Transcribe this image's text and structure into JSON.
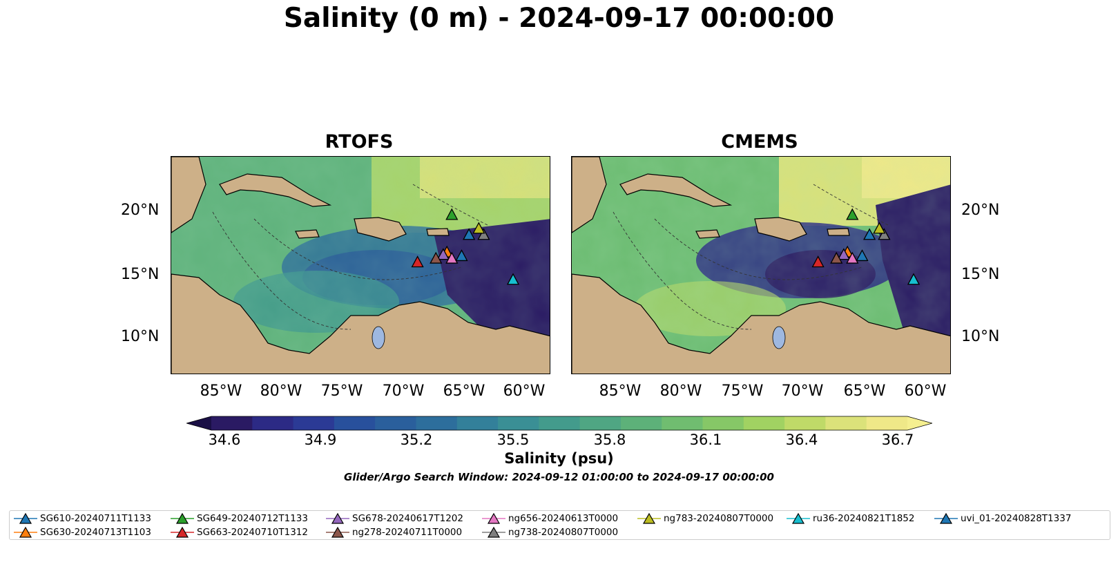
{
  "title": "Salinity (0 m) - 2024-09-17 00:00:00",
  "panels": [
    {
      "title": "RTOFS"
    },
    {
      "title": "CMEMS"
    }
  ],
  "latitude_labels": [
    "20°N",
    "15°N",
    "10°N"
  ],
  "longitude_labels": [
    "85°W",
    "80°W",
    "75°W",
    "70°W",
    "65°W",
    "60°W"
  ],
  "colorbar": {
    "ticks": [
      "34.6",
      "34.9",
      "35.2",
      "35.5",
      "35.8",
      "36.1",
      "36.4",
      "36.7"
    ],
    "label": "Salinity (psu)",
    "colors": [
      "#2a1a63",
      "#2c2a85",
      "#2b3a95",
      "#28509c",
      "#2a5f9c",
      "#2d6e9c",
      "#33809a",
      "#3a8f95",
      "#439b8c",
      "#4fa683",
      "#5db179",
      "#70bd70",
      "#86c767",
      "#a1d262",
      "#bfda68",
      "#dbe27a",
      "#efe888"
    ]
  },
  "search_window": "Glider/Argo Search Window: 2024-09-12 01:00:00 to 2024-09-17 00:00:00",
  "legend": [
    {
      "label": "SG610-20240711T1133",
      "color": "#1f77b4"
    },
    {
      "label": "SG630-20240713T1103",
      "color": "#ff7f0e"
    },
    {
      "label": "SG649-20240712T1133",
      "color": "#2ca02c"
    },
    {
      "label": "SG663-20240710T1312",
      "color": "#d62728"
    },
    {
      "label": "SG678-20240617T1202",
      "color": "#9467bd"
    },
    {
      "label": "ng278-20240711T0000",
      "color": "#8c564b"
    },
    {
      "label": "ng656-20240613T0000",
      "color": "#e377c2"
    },
    {
      "label": "ng738-20240807T0000",
      "color": "#7f7f7f"
    },
    {
      "label": "ng783-20240807T0000",
      "color": "#bcbd22"
    },
    {
      "label": "ru36-20240821T1852",
      "color": "#17becf"
    },
    {
      "label": "uvi_01-20240828T1337",
      "color": "#1f77b4"
    }
  ],
  "map_extent": {
    "lon": [
      -89,
      -58
    ],
    "lat": [
      7,
      24.5
    ]
  },
  "markers": [
    {
      "name": "SG610",
      "lon": -64.7,
      "lat": 18.2,
      "color": "#1f77b4"
    },
    {
      "name": "SG630",
      "lon": -66.5,
      "lat": 16.8,
      "color": "#ff7f0e"
    },
    {
      "name": "SG649",
      "lon": -66.1,
      "lat": 19.8,
      "color": "#2ca02c"
    },
    {
      "name": "SG663",
      "lon": -68.9,
      "lat": 16.0,
      "color": "#d62728"
    },
    {
      "name": "SG678",
      "lon": -66.8,
      "lat": 16.6,
      "color": "#9467bd"
    },
    {
      "name": "ng278",
      "lon": -67.4,
      "lat": 16.3,
      "color": "#8c564b"
    },
    {
      "name": "ng656",
      "lon": -66.1,
      "lat": 16.3,
      "color": "#e377c2"
    },
    {
      "name": "ng738",
      "lon": -63.5,
      "lat": 18.2,
      "color": "#7f7f7f"
    },
    {
      "name": "ng783",
      "lon": -63.9,
      "lat": 18.7,
      "color": "#bcbd22"
    },
    {
      "name": "ru36",
      "lon": -61.1,
      "lat": 14.6,
      "color": "#17becf"
    },
    {
      "name": "uvi_01",
      "lon": -65.3,
      "lat": 16.5,
      "color": "#1f77b4"
    }
  ]
}
